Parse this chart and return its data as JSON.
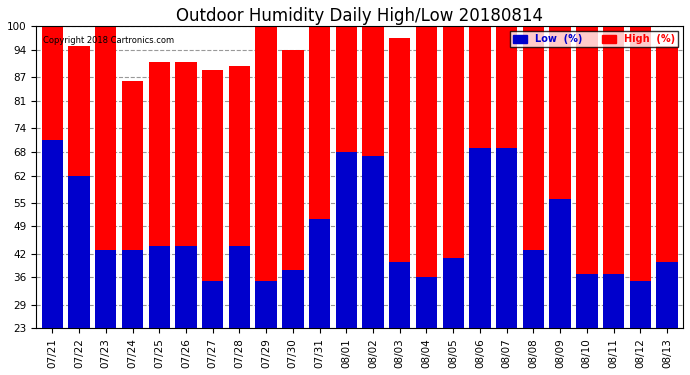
{
  "title": "Outdoor Humidity Daily High/Low 20180814",
  "copyright": "Copyright 2018 Cartronics.com",
  "dates": [
    "07/21",
    "07/22",
    "07/23",
    "07/24",
    "07/25",
    "07/26",
    "07/27",
    "07/28",
    "07/29",
    "07/30",
    "07/31",
    "08/01",
    "08/02",
    "08/03",
    "08/04",
    "08/05",
    "08/06",
    "08/07",
    "08/08",
    "08/09",
    "08/10",
    "08/11",
    "08/12",
    "08/13"
  ],
  "high": [
    100,
    95,
    100,
    86,
    91,
    91,
    89,
    90,
    100,
    94,
    100,
    100,
    100,
    97,
    100,
    100,
    100,
    100,
    100,
    100,
    100,
    100,
    100,
    95
  ],
  "low": [
    71,
    62,
    43,
    43,
    44,
    44,
    35,
    44,
    35,
    38,
    51,
    68,
    67,
    40,
    36,
    41,
    69,
    69,
    43,
    56,
    37,
    37,
    35,
    40
  ],
  "ylim_min": 23,
  "ylim_max": 100,
  "yticks": [
    23,
    29,
    36,
    42,
    49,
    55,
    62,
    68,
    74,
    81,
    87,
    94,
    100
  ],
  "high_color": "#FF0000",
  "low_color": "#0000CC",
  "bg_color": "#FFFFFF",
  "grid_color": "#999999",
  "title_fontsize": 12,
  "tick_fontsize": 7.5,
  "legend_low_label": "Low  (%)",
  "legend_high_label": "High  (%)"
}
